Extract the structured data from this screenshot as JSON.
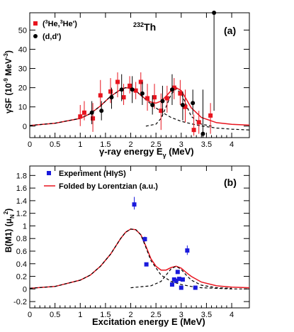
{
  "figure": {
    "nucleus": "232Th"
  },
  "chart_data": [
    {
      "panel": "(a)",
      "type": "scatter",
      "title": "232Th",
      "xlabel": "γ-ray energy E_γ (MeV)",
      "ylabel": "γSF (10^-9 MeV^-3)",
      "xlim": [
        0,
        4.35
      ],
      "ylim": [
        -6,
        59
      ],
      "xticks": [
        "0",
        "0.5",
        "1",
        "1.5",
        "2",
        "2.5",
        "3",
        "3.5",
        "4"
      ],
      "yticks": [
        "0",
        "10",
        "20",
        "30",
        "40",
        "50"
      ],
      "legend_position": "top-left",
      "series": [
        {
          "name": "(3He,3He')",
          "marker": "square",
          "color": "#e8141e",
          "points": [
            {
              "x": 1.0,
              "y": 5.0,
              "lo": 0.0,
              "hi": 11.0
            },
            {
              "x": 1.08,
              "y": 7.0,
              "lo": 3.0,
              "hi": 13.0
            },
            {
              "x": 1.25,
              "y": 4.0,
              "lo": -3.0,
              "hi": 12.0
            },
            {
              "x": 1.4,
              "y": 16.0,
              "lo": 10.0,
              "hi": 24.0
            },
            {
              "x": 1.6,
              "y": 18.0,
              "lo": 12.0,
              "hi": 25.0
            },
            {
              "x": 1.74,
              "y": 23.0,
              "lo": 15.0,
              "hi": 28.0
            },
            {
              "x": 1.86,
              "y": 15.0,
              "lo": 11.0,
              "hi": 22.0
            },
            {
              "x": 1.98,
              "y": 21.0,
              "lo": 17.0,
              "hi": 26.0
            },
            {
              "x": 2.1,
              "y": 18.5,
              "lo": 14.0,
              "hi": 23.0
            },
            {
              "x": 2.2,
              "y": 23.0,
              "lo": 17.0,
              "hi": 28.0
            },
            {
              "x": 2.33,
              "y": 14.5,
              "lo": 8.0,
              "hi": 22.0
            },
            {
              "x": 2.47,
              "y": 15.0,
              "lo": 9.0,
              "hi": 22.0
            },
            {
              "x": 2.6,
              "y": 8.0,
              "lo": -2.0,
              "hi": 17.0
            },
            {
              "x": 2.72,
              "y": 14.5,
              "lo": 7.0,
              "hi": 21.0
            },
            {
              "x": 2.86,
              "y": 20.0,
              "lo": 14.0,
              "hi": 25.0
            },
            {
              "x": 2.98,
              "y": 17.0,
              "lo": 11.0,
              "hi": 24.0
            },
            {
              "x": 3.08,
              "y": 10.0,
              "lo": 2.0,
              "hi": 19.0
            },
            {
              "x": 3.25,
              "y": -2.0,
              "lo": -5.0,
              "hi": 6.0
            },
            {
              "x": 3.35,
              "y": 2.0,
              "lo": -4.0,
              "hi": 8.0
            },
            {
              "x": 3.58,
              "y": 5.5,
              "lo": -4.0,
              "hi": 12.0
            }
          ]
        },
        {
          "name": "(d,d')",
          "marker": "circle",
          "color": "#000000",
          "points": [
            {
              "x": 1.23,
              "y": 7.0,
              "lo": 1.0,
              "hi": 13.0
            },
            {
              "x": 1.42,
              "y": 8.0,
              "lo": 3.0,
              "hi": 13.0
            },
            {
              "x": 1.62,
              "y": 15.0,
              "lo": 9.0,
              "hi": 20.0
            },
            {
              "x": 1.82,
              "y": 19.0,
              "lo": 13.0,
              "hi": 27.0
            },
            {
              "x": 2.03,
              "y": 19.0,
              "lo": 12.0,
              "hi": 26.0
            },
            {
              "x": 2.23,
              "y": 17.0,
              "lo": 11.0,
              "hi": 23.0
            },
            {
              "x": 2.43,
              "y": 11.0,
              "lo": 6.0,
              "hi": 16.0
            },
            {
              "x": 2.63,
              "y": 13.0,
              "lo": 5.0,
              "hi": 21.0
            },
            {
              "x": 2.82,
              "y": 19.0,
              "lo": 11.0,
              "hi": 27.0
            },
            {
              "x": 3.03,
              "y": 11.0,
              "lo": 3.0,
              "hi": 18.0
            },
            {
              "x": 3.23,
              "y": 12.0,
              "lo": 6.0,
              "hi": 19.0
            },
            {
              "x": 3.43,
              "y": -4.0,
              "lo": -9.0,
              "hi": 19.0
            },
            {
              "x": 3.65,
              "y": 59.0,
              "lo": 8.0,
              "hi": 60.0
            }
          ]
        },
        {
          "name": "",
          "type": "line",
          "color": "#e8141e",
          "dash": "solid",
          "x": [
            0,
            0.5,
            1.0,
            1.2,
            1.4,
            1.6,
            1.8,
            1.9,
            2.0,
            2.1,
            2.2,
            2.3,
            2.4,
            2.5,
            2.6,
            2.7,
            2.8,
            2.9,
            3.0,
            3.1,
            3.2,
            3.4,
            3.7,
            4.0,
            4.35
          ],
          "y": [
            0.3,
            1.5,
            4.0,
            6.5,
            10.5,
            15.5,
            19.0,
            20.0,
            19.7,
            18.5,
            16.0,
            14.0,
            12.5,
            12.0,
            13.0,
            15.5,
            18.5,
            20.0,
            18.5,
            14.0,
            9.5,
            4.5,
            1.8,
            0.9,
            0.5
          ]
        },
        {
          "name": "",
          "type": "line",
          "color": "#000000",
          "dash": "dashed",
          "x": [
            0,
            0.5,
            1.0,
            1.2,
            1.4,
            1.6,
            1.8,
            1.9,
            2.0,
            2.1,
            2.2,
            2.4,
            2.6,
            2.8,
            3.0,
            3.2,
            3.4,
            3.7,
            4.0,
            4.35
          ],
          "y": [
            0.3,
            1.5,
            4.0,
            6.5,
            10.5,
            15.5,
            19.0,
            20.0,
            19.7,
            18.5,
            16.0,
            11.5,
            7.5,
            4.5,
            2.5,
            1.2,
            0.1,
            -1.0,
            -1.6,
            -2.0
          ]
        },
        {
          "name": "",
          "type": "line",
          "color": "#000000",
          "dash": "dashed",
          "x": [
            2.3,
            2.5,
            2.6,
            2.7,
            2.8,
            2.9,
            3.0,
            3.1,
            3.2,
            3.4,
            3.6
          ],
          "y": [
            0.0,
            1.0,
            4.0,
            10.0,
            16.5,
            19.5,
            17.0,
            11.0,
            5.0,
            1.0,
            0.0
          ]
        }
      ]
    },
    {
      "panel": "(b)",
      "type": "scatter",
      "xlabel": "Excitation energy E (MeV)",
      "ylabel": "B(M1) (μ_N^2)",
      "xlim": [
        0,
        4.35
      ],
      "ylim": [
        -0.3,
        1.95
      ],
      "xticks": [
        "0",
        "0.5",
        "1",
        "1.5",
        "2",
        "2.5",
        "3",
        "3.5",
        "4"
      ],
      "yticks": [
        "-0.2",
        "0",
        "0.2",
        "0.4",
        "0.6",
        "0.8",
        "1",
        "1.2",
        "1.4",
        "1.6",
        "1.8"
      ],
      "legend_position": "top-left",
      "series": [
        {
          "name": "Experiment (HIγS)",
          "marker": "square",
          "color": "#1a1adc",
          "points": [
            {
              "x": 2.07,
              "y": 1.34,
              "lo": 1.26,
              "hi": 1.46
            },
            {
              "x": 2.28,
              "y": 0.79,
              "lo": 0.75,
              "hi": 0.83
            },
            {
              "x": 2.31,
              "y": 0.39,
              "lo": 0.37,
              "hi": 0.41
            },
            {
              "x": 2.82,
              "y": 0.07,
              "lo": 0.05,
              "hi": 0.09
            },
            {
              "x": 2.86,
              "y": 0.15,
              "lo": 0.13,
              "hi": 0.17
            },
            {
              "x": 2.9,
              "y": 0.13,
              "lo": 0.11,
              "hi": 0.15
            },
            {
              "x": 2.93,
              "y": 0.27,
              "lo": 0.25,
              "hi": 0.29
            },
            {
              "x": 2.96,
              "y": 0.16,
              "lo": 0.14,
              "hi": 0.18
            },
            {
              "x": 3.0,
              "y": 0.02,
              "lo": 0.0,
              "hi": 0.04
            },
            {
              "x": 3.03,
              "y": 0.15,
              "lo": 0.13,
              "hi": 0.17
            },
            {
              "x": 3.12,
              "y": 0.61,
              "lo": 0.54,
              "hi": 0.69
            },
            {
              "x": 3.28,
              "y": 0.02,
              "lo": 0.0,
              "hi": 0.04
            }
          ]
        },
        {
          "name": "Folded by Lorentzian (a.u.)",
          "type": "line",
          "color": "#e8141e",
          "dash": "solid",
          "x": [
            0,
            0.5,
            1.0,
            1.2,
            1.4,
            1.6,
            1.8,
            1.9,
            2.0,
            2.1,
            2.2,
            2.3,
            2.4,
            2.5,
            2.6,
            2.7,
            2.8,
            2.9,
            3.0,
            3.1,
            3.2,
            3.4,
            3.7,
            4.0,
            4.35
          ],
          "y": [
            0.01,
            0.04,
            0.14,
            0.22,
            0.36,
            0.55,
            0.8,
            0.9,
            0.95,
            0.94,
            0.86,
            0.68,
            0.48,
            0.36,
            0.3,
            0.3,
            0.34,
            0.36,
            0.33,
            0.26,
            0.2,
            0.11,
            0.05,
            0.03,
            0.02
          ]
        },
        {
          "name": "",
          "type": "line",
          "color": "#000000",
          "dash": "dashed",
          "x": [
            0,
            0.5,
            1.0,
            1.2,
            1.4,
            1.6,
            1.8,
            1.9,
            2.0,
            2.1,
            2.2,
            2.3,
            2.4,
            2.6,
            2.8,
            3.0,
            3.2,
            3.4,
            3.7,
            4.0,
            4.35
          ],
          "y": [
            0.01,
            0.04,
            0.14,
            0.22,
            0.36,
            0.55,
            0.8,
            0.9,
            0.95,
            0.94,
            0.86,
            0.66,
            0.45,
            0.22,
            0.12,
            0.07,
            0.04,
            0.02,
            0.01,
            0.0,
            0.0
          ]
        },
        {
          "name": "",
          "type": "line",
          "color": "#000000",
          "dash": "dashed",
          "x": [
            2.0,
            2.4,
            2.6,
            2.7,
            2.8,
            2.9,
            3.0,
            3.1,
            3.2,
            3.4,
            3.7,
            4.0
          ],
          "y": [
            0.02,
            0.05,
            0.12,
            0.22,
            0.32,
            0.36,
            0.31,
            0.22,
            0.14,
            0.06,
            0.02,
            0.01
          ]
        }
      ]
    }
  ]
}
